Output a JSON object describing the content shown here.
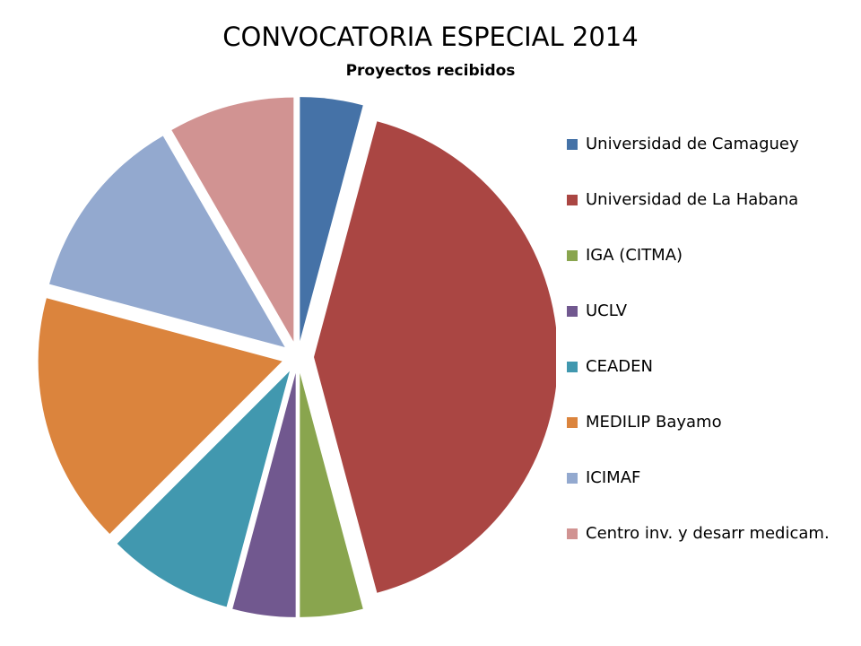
{
  "chart_data": {
    "type": "pie",
    "title": "CONVOCATORIA ESPECIAL 2014",
    "subtitle": "Proyectos recibidos",
    "legend_position": "right",
    "exploded": true,
    "categories": [
      "Universidad de Camaguey",
      "Universidad de La Habana",
      "IGA (CITMA)",
      "UCLV",
      "CEADEN",
      "MEDILIP Bayamo",
      "ICIMAF",
      "Centro inv. y desarr medicam."
    ],
    "values": [
      1,
      10,
      1,
      1,
      2,
      4,
      3,
      2
    ],
    "colors": [
      "#4572A7",
      "#AA4643",
      "#89A54E",
      "#71588F",
      "#4198AF",
      "#DB843D",
      "#93A9CF",
      "#D19392"
    ]
  }
}
